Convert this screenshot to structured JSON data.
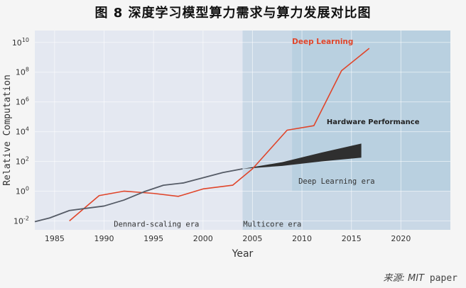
{
  "figure": {
    "title": "图 8  深度学习模型算力需求与算力发展对比图",
    "source_label": "来源: MIT",
    "source_tail": " paper"
  },
  "colors": {
    "page_bg": "#f5f5f5",
    "plot_bg": "#e4e8f1",
    "multicore_band": "#c9d8e6",
    "deep_learning_band": "#b9d0e0",
    "dl_line": "#e0452a",
    "cpu_line": "#555b66",
    "hw_band": "#2f2f2f",
    "dl_label": "#e0452a",
    "text": "#333333"
  },
  "chart_data": {
    "type": "line",
    "xlabel": "Year",
    "ylabel": "Relative Computation",
    "xlim": [
      1983,
      2025
    ],
    "ylim_log10": [
      -2.6,
      10.8
    ],
    "y_scale": "log10",
    "grid": true,
    "x_ticks": [
      1985,
      1990,
      1995,
      2000,
      2005,
      2010,
      2015,
      2020
    ],
    "y_ticks": [
      {
        "exp": -2,
        "label": "10",
        "sup": "-2"
      },
      {
        "exp": 0,
        "label": "10",
        "sup": "0"
      },
      {
        "exp": 2,
        "label": "10",
        "sup": "2"
      },
      {
        "exp": 4,
        "label": "10",
        "sup": "4"
      },
      {
        "exp": 6,
        "label": "10",
        "sup": "6"
      },
      {
        "exp": 8,
        "label": "10",
        "sup": "8"
      },
      {
        "exp": 10,
        "label": "10",
        "sup": "10"
      }
    ],
    "eras": [
      {
        "label": "Dennard-scaling era",
        "x_start": 1983,
        "x_end": 2004
      },
      {
        "label": "Multicore era",
        "x_start": 2004,
        "x_end": 2025
      },
      {
        "label": "Deep Learning era",
        "x_start": 2009,
        "x_end": 2025,
        "y_min_log10": 0
      }
    ],
    "series": [
      {
        "name": "Deep Learning",
        "x": [
          1986.5,
          1989.5,
          1992,
          1995,
          1997.5,
          2000,
          2003,
          2005,
          2008.5,
          2011.2,
          2014,
          2016.8
        ],
        "y_log10": [
          -2.0,
          -0.3,
          0.0,
          -0.15,
          -0.35,
          0.15,
          0.4,
          1.5,
          4.1,
          4.4,
          8.1,
          9.6
        ]
      },
      {
        "name": "Hardware Performance",
        "x": [
          1983,
          1984.5,
          1986.5,
          1990,
          1992,
          1994,
          1996,
          1998,
          2000,
          2002,
          2004
        ],
        "y_log10": [
          -2.05,
          -1.8,
          -1.3,
          -1.0,
          -0.6,
          -0.05,
          0.4,
          0.55,
          0.9,
          1.25,
          1.5
        ]
      }
    ],
    "hardware_band": {
      "x": [
        2004,
        2008,
        2012,
        2016
      ],
      "y_low_log10": [
        1.5,
        1.7,
        2.0,
        2.25
      ],
      "y_high_log10": [
        1.5,
        1.95,
        2.6,
        3.2
      ]
    },
    "annotations": [
      {
        "text": "Deep Learning",
        "x": 2009,
        "y_log10": 9.9
      },
      {
        "text": "Hardware Performance",
        "x": 2012.5,
        "y_log10": 4.5
      }
    ]
  }
}
